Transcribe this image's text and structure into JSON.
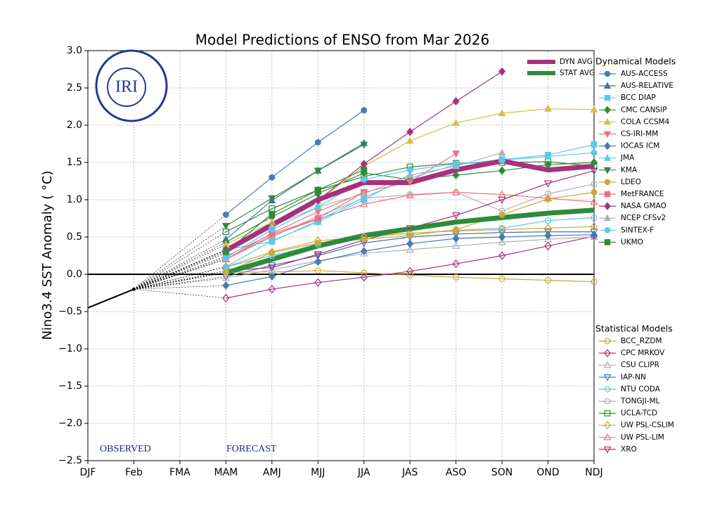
{
  "chart_data": {
    "type": "line",
    "title": "Model Predictions of ENSO from Mar 2026",
    "y_label": "Nino3.4 SST Anomaly ( °C)",
    "logo_text": "IRI",
    "annotations": [
      "OBSERVED",
      "FORECAST"
    ],
    "categories": [
      "DJF",
      "Feb",
      "FMA",
      "MAM",
      "AMJ",
      "MJJ",
      "JJA",
      "JAS",
      "ASO",
      "SON",
      "OND",
      "NDJ"
    ],
    "ylim": [
      -2.5,
      3
    ],
    "yticks": [
      {
        "value": -2.5,
        "label": "−2.5"
      },
      {
        "value": -2,
        "label": "−2.0"
      },
      {
        "value": -1.5,
        "label": "−1.5"
      },
      {
        "value": -1,
        "label": "−1.0"
      },
      {
        "value": -0.5,
        "label": "−0.5"
      },
      {
        "value": 0,
        "label": "0.0"
      },
      0.5,
      {
        "value": 1,
        "label": "1.0"
      },
      1.5,
      {
        "value": 2,
        "label": "2.0"
      },
      2.5,
      {
        "value": 3,
        "label": "3.0"
      }
    ],
    "grid": true,
    "observed": {
      "color": "#000000",
      "values": [
        -0.45,
        -0.2,
        null,
        null,
        null,
        null,
        null,
        null,
        null,
        null,
        null,
        null
      ]
    },
    "averages": [
      {
        "name": "DYN AVG",
        "color": "#a6317c",
        "values": [
          null,
          null,
          null,
          0.32,
          0.66,
          1.0,
          1.23,
          1.23,
          1.4,
          1.52,
          1.4,
          1.45
        ]
      },
      {
        "name": "STAT AVG",
        "color": "#2e8b3a",
        "values": [
          null,
          null,
          null,
          0.02,
          0.2,
          0.38,
          0.52,
          0.61,
          0.7,
          0.76,
          0.82,
          0.86
        ]
      }
    ],
    "dynamical": {
      "title": "Dynamical Models",
      "filled": true,
      "series": [
        {
          "name": "AUS-ACCESS",
          "color": "#4a7cb0",
          "marker": "circle",
          "values": [
            null,
            null,
            null,
            0.8,
            1.3,
            1.77,
            2.2,
            null,
            null,
            null,
            null,
            null
          ]
        },
        {
          "name": "AUS-RELATIVE",
          "color": "#4a6fb0",
          "marker": "triangle-up",
          "values": [
            null,
            null,
            null,
            0.47,
            0.99,
            1.39,
            1.76,
            null,
            null,
            null,
            null,
            null
          ]
        },
        {
          "name": "BCC DIAP",
          "color": "#5bc8ef",
          "marker": "square",
          "values": [
            null,
            null,
            null,
            0.33,
            0.44,
            0.72,
            1.03,
            1.29,
            1.47,
            1.54,
            1.6,
            1.74
          ]
        },
        {
          "name": "CMC CANSIP",
          "color": "#2e8b3a",
          "marker": "diamond",
          "values": [
            null,
            null,
            null,
            0.43,
            0.77,
            1.08,
            1.36,
            1.27,
            1.33,
            1.39,
            1.47,
            1.5
          ]
        },
        {
          "name": "COLA CCSM4",
          "color": "#d4c04a",
          "marker": "triangle-up",
          "values": [
            null,
            null,
            null,
            0.4,
            0.7,
            0.98,
            1.45,
            1.79,
            2.03,
            2.16,
            2.22,
            2.21
          ]
        },
        {
          "name": "CS-IRI-MM",
          "color": "#f0707a",
          "marker": "triangle-down",
          "values": [
            null,
            null,
            null,
            0.2,
            0.55,
            0.84,
            1.1,
            1.24,
            1.62,
            null,
            null,
            null
          ]
        },
        {
          "name": "IOCAS ICM",
          "color": "#4a7cb0",
          "marker": "diamond",
          "values": [
            null,
            null,
            null,
            -0.15,
            -0.03,
            0.17,
            0.31,
            0.41,
            0.48,
            0.5,
            0.52,
            0.53
          ]
        },
        {
          "name": "JMA",
          "color": "#5bc8ef",
          "marker": "triangle-up",
          "values": [
            null,
            null,
            null,
            0.1,
            0.45,
            0.7,
            1.0,
            1.33,
            null,
            null,
            null,
            null
          ]
        },
        {
          "name": "KMA",
          "color": "#2e8b3a",
          "marker": "triangle-down",
          "values": [
            null,
            null,
            null,
            0.65,
            1.02,
            1.39,
            1.74,
            null,
            null,
            null,
            null,
            null
          ]
        },
        {
          "name": "LDEO",
          "color": "#c8aa38",
          "marker": "circle",
          "values": [
            null,
            null,
            null,
            0.03,
            0.29,
            0.42,
            0.47,
            0.52,
            0.6,
            0.8,
            1.01,
            1.1
          ]
        },
        {
          "name": "MetFRANCE",
          "color": "#e8707e",
          "marker": "square",
          "values": [
            null,
            null,
            null,
            0.24,
            0.54,
            0.75,
            1.1,
            null,
            null,
            null,
            null,
            null
          ]
        },
        {
          "name": "NASA GMAO",
          "color": "#a6317c",
          "marker": "diamond",
          "values": [
            null,
            null,
            null,
            0.33,
            0.65,
            0.99,
            1.48,
            1.91,
            2.32,
            2.72,
            null,
            null
          ]
        },
        {
          "name": "NCEP CFSv2",
          "color": "#b0b0b0",
          "marker": "triangle-up",
          "values": [
            null,
            null,
            null,
            0.28,
            0.65,
            0.9,
            1.08,
            1.33,
            1.45,
            1.63,
            null,
            null
          ]
        },
        {
          "name": "SINTEX-F",
          "color": "#5bc8ef",
          "marker": "circle",
          "values": [
            null,
            null,
            null,
            0.22,
            0.6,
            0.9,
            1.27,
            1.4,
            1.48,
            1.53,
            1.58,
            1.63
          ]
        },
        {
          "name": "UKMO",
          "color": "#2e8b3a",
          "marker": "square",
          "values": [
            null,
            null,
            null,
            0.3,
            0.81,
            1.13,
            1.4,
            null,
            null,
            null,
            null,
            null
          ]
        }
      ]
    },
    "statistical": {
      "title": "Statistical Models",
      "filled": false,
      "series": [
        {
          "name": "BCC_RZDM",
          "color": "#c8aa38",
          "marker": "circle",
          "values": [
            null,
            null,
            null,
            0.03,
            0.03,
            0.05,
            0.02,
            -0.01,
            -0.04,
            -0.06,
            -0.08,
            -0.1
          ]
        },
        {
          "name": "CPC MRKOV",
          "color": "#a6317c",
          "marker": "diamond",
          "values": [
            null,
            null,
            null,
            -0.32,
            -0.2,
            -0.11,
            -0.04,
            0.04,
            0.14,
            0.25,
            0.38,
            0.51
          ]
        },
        {
          "name": "CSU CLIPR",
          "color": "#b0b0b0",
          "marker": "triangle-up",
          "values": [
            null,
            null,
            null,
            -0.05,
            0.06,
            0.18,
            0.28,
            0.33,
            0.38,
            0.43,
            0.47,
            0.5
          ]
        },
        {
          "name": "IAP-NN",
          "color": "#4a6fb0",
          "marker": "triangle-down",
          "values": [
            null,
            null,
            null,
            -0.03,
            0.12,
            0.25,
            0.42,
            0.5,
            0.54,
            0.56,
            0.57,
            0.57
          ]
        },
        {
          "name": "NTU CODA",
          "color": "#5bc8ef",
          "marker": "circle",
          "values": [
            null,
            null,
            null,
            0.1,
            0.25,
            0.4,
            0.5,
            0.55,
            0.59,
            0.62,
            0.72,
            0.76
          ]
        },
        {
          "name": "TONGJI-ML",
          "color": "#b0b0b0",
          "marker": "circle",
          "values": [
            null,
            null,
            null,
            0.2,
            0.5,
            0.78,
            1.02,
            1.07,
            1.1,
            0.85,
            1.08,
            1.21
          ]
        },
        {
          "name": "UCLA-TCD",
          "color": "#2e8b3a",
          "marker": "square",
          "values": [
            null,
            null,
            null,
            0.57,
            0.88,
            1.13,
            1.31,
            1.44,
            1.49,
            1.5,
            1.51,
            1.45
          ]
        },
        {
          "name": "UW PSL-CSLIM",
          "color": "#c8aa38",
          "marker": "diamond",
          "values": [
            null,
            null,
            null,
            0.1,
            0.3,
            0.45,
            0.5,
            0.55,
            0.58,
            0.6,
            0.62,
            0.64
          ]
        },
        {
          "name": "UW PSL-LIM",
          "color": "#f0707a",
          "marker": "triangle-up",
          "values": [
            null,
            null,
            null,
            0.2,
            0.52,
            0.74,
            0.94,
            1.06,
            1.1,
            1.07,
            1.02,
            0.97
          ]
        },
        {
          "name": "XRO",
          "color": "#a6317c",
          "marker": "triangle-down",
          "values": [
            null,
            null,
            null,
            0.05,
            0.09,
            0.27,
            0.46,
            0.62,
            0.79,
            1.0,
            1.22,
            1.39
          ]
        }
      ]
    }
  }
}
